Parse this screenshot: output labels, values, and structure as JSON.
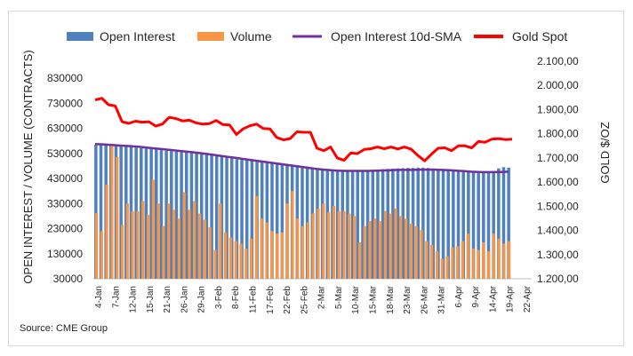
{
  "chart_data": {
    "type": "bar",
    "legend": {
      "open_interest": "Open Interest",
      "volume": "Volume",
      "oi_sma": "Open Interest 10d-SMA",
      "gold_spot": "Gold Spot"
    },
    "colors": {
      "open_interest": "#4f81bd",
      "volume": "#f79646",
      "oi_sma": "#7030a0",
      "gold_spot": "#ff0000"
    },
    "y_left": {
      "label": "OPEN INTEREST / VOLUME (CONTRACTS)",
      "ticks": [
        "830000",
        "730000",
        "630000",
        "530000",
        "430000",
        "330000",
        "230000",
        "130000",
        "30000"
      ],
      "range": [
        30000,
        830000
      ]
    },
    "y_right": {
      "label": "GOLD $/OZ",
      "ticks": [
        "2.100,00",
        "2.000,00",
        "1.900,00",
        "1.800,00",
        "1.700,00",
        "1.600,00",
        "1.500,00",
        "1.400,00",
        "1.300,00",
        "1.200,00"
      ],
      "range": [
        1200,
        2100
      ]
    },
    "x_ticks": [
      "4-Jan",
      "7-Jan",
      "12-Jan",
      "15-Jan",
      "21-Jan",
      "26-Jan",
      "29-Jan",
      "3-Feb",
      "8-Feb",
      "11-Feb",
      "17-Feb",
      "22-Feb",
      "25-Feb",
      "2-Mar",
      "5-Mar",
      "10-Mar",
      "15-Mar",
      "18-Mar",
      "23-Mar",
      "26-Mar",
      "31-Mar",
      "6-Apr",
      "9-Apr",
      "14-Apr",
      "19-Apr",
      "22-Apr"
    ],
    "open_interest": [
      566000,
      566000,
      567000,
      568000,
      562000,
      558000,
      556000,
      555000,
      553000,
      551000,
      549000,
      547000,
      545000,
      543000,
      541000,
      539000,
      537000,
      535000,
      533000,
      531000,
      529000,
      527000,
      525000,
      522000,
      519000,
      516000,
      513000,
      510000,
      507000,
      504000,
      502000,
      500000,
      498000,
      496000,
      494000,
      492000,
      490000,
      488000,
      486000,
      484000,
      480000,
      476000,
      472000,
      468000,
      464000,
      462000,
      460000,
      459000,
      458000,
      458000,
      459000,
      460000,
      461000,
      462000,
      463000,
      464000,
      465000,
      467000,
      468000,
      469000,
      470000,
      471000,
      472000,
      472000,
      473000,
      473000,
      472000,
      470000,
      468000,
      466000,
      464000,
      462000,
      460000,
      458000,
      457000,
      456000,
      455000,
      454000,
      456000,
      460000,
      470000,
      475000,
      473000
    ],
    "volume": [
      292000,
      220000,
      405000,
      565000,
      515000,
      245000,
      330000,
      300000,
      300000,
      340000,
      285000,
      425000,
      330000,
      240000,
      330000,
      305000,
      270000,
      375000,
      305000,
      340000,
      290000,
      265000,
      235000,
      145000,
      330000,
      215000,
      195000,
      180000,
      170000,
      150000,
      190000,
      360000,
      270000,
      255000,
      220000,
      210000,
      215000,
      330000,
      380000,
      270000,
      240000,
      255000,
      290000,
      310000,
      330000,
      295000,
      320000,
      300000,
      300000,
      290000,
      280000,
      175000,
      240000,
      260000,
      270000,
      260000,
      300000,
      290000,
      310000,
      280000,
      270000,
      250000,
      240000,
      225000,
      180000,
      165000,
      140000,
      110000,
      120000,
      155000,
      160000,
      180000,
      210000,
      150000,
      145000,
      175000,
      140000,
      210000,
      190000,
      170000,
      180000
    ],
    "oi_sma": [
      567000,
      566000,
      564000,
      562000,
      560000,
      558000,
      556000,
      553000,
      550000,
      547000,
      544000,
      541000,
      538000,
      535000,
      532000,
      528000,
      524000,
      520000,
      516000,
      512000,
      508000,
      504000,
      500000,
      496000,
      492000,
      488000,
      484000,
      480000,
      476000,
      472000,
      468000,
      465000,
      463000,
      461000,
      460000,
      460000,
      460000,
      460000,
      461000,
      462000,
      463000,
      464000,
      464000,
      464000,
      465000,
      465000,
      465000,
      464000,
      463000,
      461000,
      459000,
      457000,
      456000,
      455000,
      455000,
      456000,
      457000
    ],
    "gold_spot": [
      1940,
      1947,
      1920,
      1915,
      1850,
      1843,
      1852,
      1848,
      1850,
      1832,
      1840,
      1868,
      1863,
      1853,
      1856,
      1845,
      1840,
      1842,
      1855,
      1838,
      1836,
      1797,
      1820,
      1833,
      1840,
      1822,
      1820,
      1785,
      1775,
      1780,
      1808,
      1806,
      1806,
      1740,
      1730,
      1745,
      1700,
      1690,
      1720,
      1718,
      1735,
      1738,
      1745,
      1738,
      1745,
      1737,
      1745,
      1736,
      1710,
      1688,
      1715,
      1740,
      1742,
      1730,
      1750,
      1750,
      1742,
      1768,
      1765,
      1778,
      1780,
      1776,
      1778
    ]
  },
  "footer": {
    "source": "Source: CME Group"
  }
}
